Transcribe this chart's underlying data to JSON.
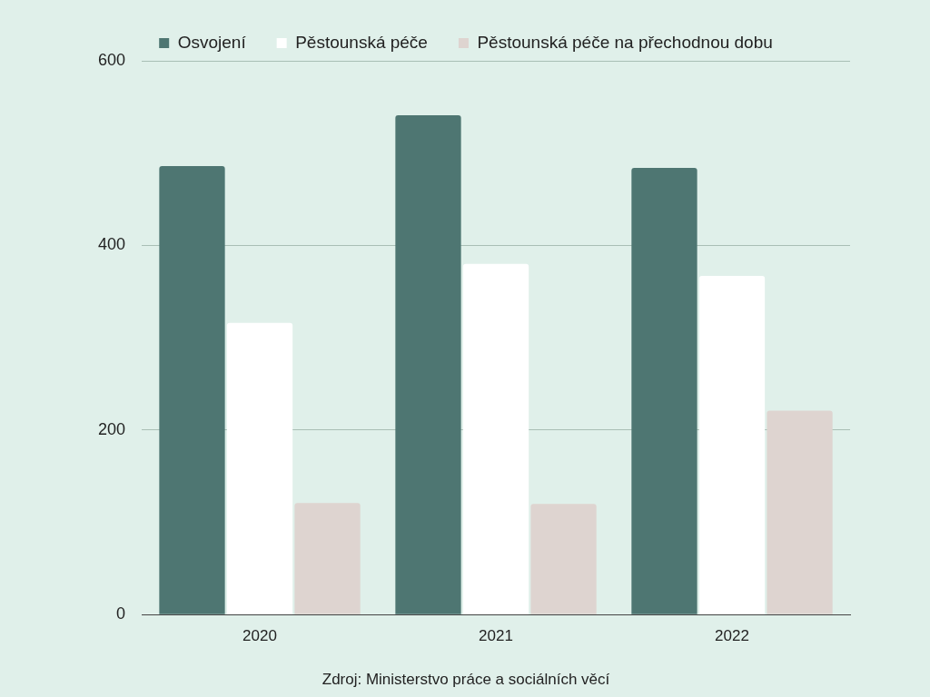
{
  "chart_data": {
    "type": "bar",
    "categories": [
      "2020",
      "2021",
      "2022"
    ],
    "series": [
      {
        "name": "Osvojení",
        "color": "#4e7672",
        "values": [
          486,
          541,
          484
        ]
      },
      {
        "name": "Pěstounská péče",
        "color": "#ffffff",
        "values": [
          316,
          380,
          367
        ]
      },
      {
        "name": "Pěstounská péče na přechodnou dobu",
        "color": "#ded4d0",
        "values": [
          121,
          120,
          221
        ]
      }
    ],
    "ylim": [
      0,
      600
    ],
    "yticks": [
      0,
      200,
      400,
      600
    ],
    "grid": "y",
    "legend": "top",
    "annotations": [
      "Zdroj: Ministerstvo práce a sociálních věcí"
    ]
  }
}
